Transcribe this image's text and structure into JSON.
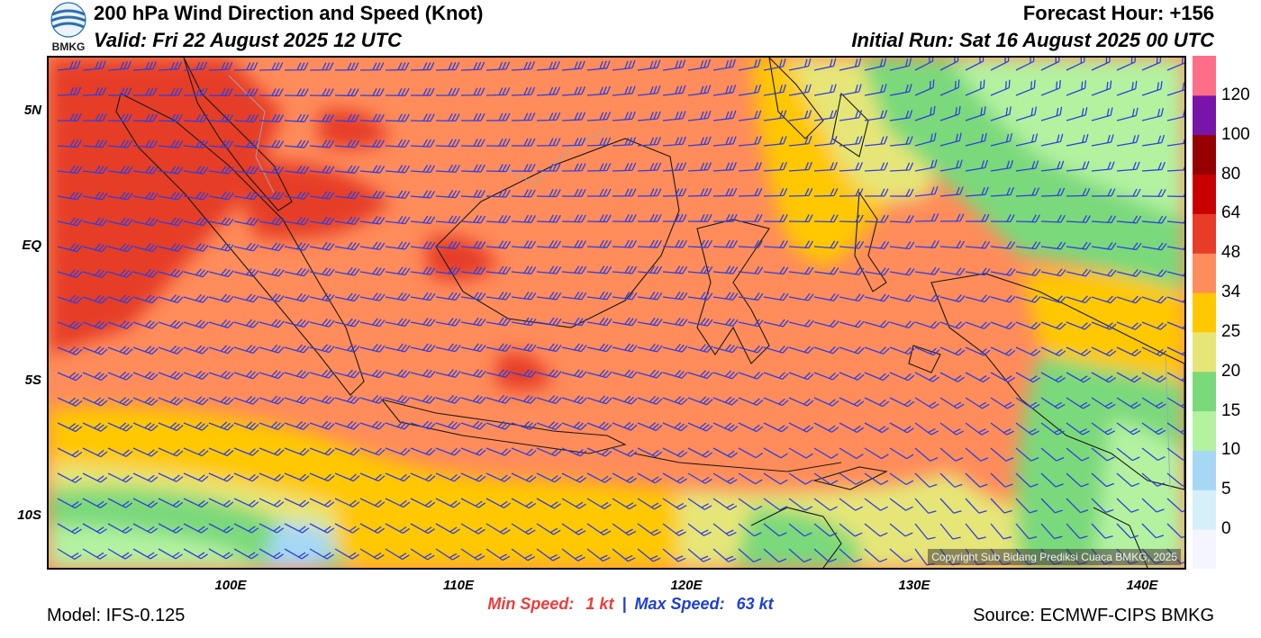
{
  "header": {
    "title": "200 hPa Wind Direction and Speed (Knot)",
    "valid": "Valid: Fri 22 August 2025 12 UTC",
    "forecast_hour": "Forecast Hour: +156",
    "initial_run": "Initial Run: Sat 16 August 2025 00 UTC",
    "logo_text": "BMKG"
  },
  "axes": {
    "lat_labels": [
      "5N",
      "EQ",
      "5S",
      "10S"
    ],
    "lon_labels": [
      "100E",
      "110E",
      "120E",
      "130E",
      "140E"
    ]
  },
  "colorbar": {
    "labels": [
      "120",
      "100",
      "80",
      "64",
      "48",
      "34",
      "25",
      "20",
      "15",
      "10",
      "5",
      "0"
    ],
    "colors": [
      "#f5f5ff",
      "#d6f0fa",
      "#a6d8f5",
      "#b4f2a0",
      "#7ad97a",
      "#e6e678",
      "#ffc800",
      "#ff8c5a",
      "#e63c28",
      "#c80000",
      "#960000",
      "#7814aa",
      "#ff6e87"
    ]
  },
  "map": {
    "copyright": "Copyright Sub Bidang Prediksi Cuaca BMKG, 2025",
    "barb_color": "#2f3fe0"
  },
  "speeds": {
    "min_label": "Min Speed:",
    "min_value": "1 kt",
    "sep": "|",
    "max_label": "Max Speed:",
    "max_value": "63 kt"
  },
  "footer": {
    "model": "Model: IFS-0.125",
    "source": "Source: ECMWF-CIPS BMKG"
  }
}
